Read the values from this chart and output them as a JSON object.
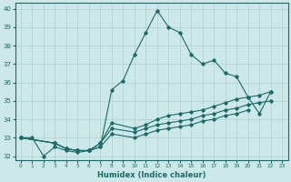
{
  "xlabel": "Humidex (Indice chaleur)",
  "xlim": [
    -0.5,
    23.5
  ],
  "ylim": [
    31.8,
    40.3
  ],
  "yticks": [
    32,
    33,
    34,
    35,
    36,
    37,
    38,
    39,
    40
  ],
  "xticks": [
    0,
    1,
    2,
    3,
    4,
    5,
    6,
    7,
    8,
    9,
    10,
    11,
    12,
    13,
    14,
    15,
    16,
    17,
    18,
    19,
    20,
    21,
    22,
    23
  ],
  "bg_color": "#cde8e8",
  "line_color": "#1a6b6b",
  "grid_color": "#b0d0d0",
  "series": [
    {
      "x": [
        0,
        1,
        2,
        3,
        4,
        5,
        6,
        7,
        8,
        9,
        10,
        11,
        12,
        13,
        14,
        15,
        16,
        17,
        18,
        19,
        20,
        21,
        22
      ],
      "y": [
        33.0,
        33.0,
        32.0,
        32.5,
        32.3,
        32.2,
        32.3,
        32.5,
        35.6,
        36.1,
        37.5,
        38.7,
        39.9,
        39.0,
        38.7,
        37.5,
        37.0,
        37.2,
        36.5,
        36.3,
        35.2,
        34.3,
        35.5
      ]
    },
    {
      "x": [
        0,
        3,
        4,
        5,
        6,
        7,
        8,
        10,
        11,
        12,
        13,
        14,
        15,
        16,
        17,
        18,
        19,
        20,
        21,
        22
      ],
      "y": [
        33.0,
        32.7,
        32.4,
        32.3,
        32.3,
        32.7,
        33.8,
        33.5,
        33.7,
        34.0,
        34.2,
        34.3,
        34.4,
        34.5,
        34.7,
        34.9,
        35.1,
        35.2,
        35.3,
        35.5
      ]
    },
    {
      "x": [
        0,
        3,
        4,
        5,
        6,
        7,
        8,
        10,
        11,
        12,
        13,
        14,
        15,
        16,
        17,
        18,
        19,
        20,
        21,
        22
      ],
      "y": [
        33.0,
        32.7,
        32.4,
        32.3,
        32.3,
        32.7,
        33.5,
        33.3,
        33.5,
        33.7,
        33.8,
        33.9,
        34.0,
        34.2,
        34.3,
        34.5,
        34.6,
        34.8,
        34.9,
        35.0
      ]
    },
    {
      "x": [
        0,
        3,
        4,
        5,
        6,
        7,
        8,
        10,
        11,
        12,
        13,
        14,
        15,
        16,
        17,
        18,
        19,
        20
      ],
      "y": [
        33.0,
        32.7,
        32.4,
        32.3,
        32.3,
        32.5,
        33.2,
        33.0,
        33.2,
        33.4,
        33.5,
        33.6,
        33.7,
        33.9,
        34.0,
        34.2,
        34.3,
        34.5
      ]
    }
  ]
}
